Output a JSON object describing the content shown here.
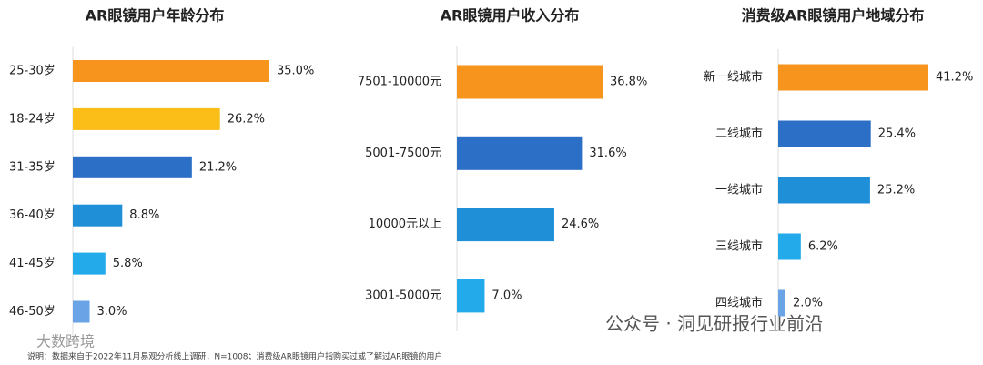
{
  "chart_data": [
    {
      "type": "bar",
      "orientation": "horizontal",
      "title": "AR眼镜用户年龄分布",
      "categories": [
        "25-30岁",
        "18-24岁",
        "31-35岁",
        "36-40岁",
        "41-45岁",
        "46-50岁"
      ],
      "values": [
        35.0,
        26.2,
        21.2,
        8.8,
        5.8,
        3.0
      ],
      "value_labels": [
        "35.0%",
        "26.2%",
        "21.2%",
        "8.8%",
        "5.8%",
        "3.0%"
      ],
      "colors": [
        "#f7941d",
        "#fbbd18",
        "#2b6fc6",
        "#1f8fd8",
        "#22aaea",
        "#6aa3e6"
      ]
    },
    {
      "type": "bar",
      "orientation": "horizontal",
      "title": "AR眼镜用户收入分布",
      "categories": [
        "7501-10000元",
        "5001-7500元",
        "10000元以上",
        "3001-5000元"
      ],
      "values": [
        36.8,
        31.6,
        24.6,
        7.0
      ],
      "value_labels": [
        "36.8%",
        "31.6%",
        "24.6%",
        "7.0%"
      ],
      "colors": [
        "#f7941d",
        "#2b6fc6",
        "#1f8fd8",
        "#22aaea"
      ]
    },
    {
      "type": "bar",
      "orientation": "horizontal",
      "title": "消费级AR眼镜用户地域分布",
      "categories": [
        "新一线城市",
        "二线城市",
        "一线城市",
        "三线城市",
        "四线城市"
      ],
      "values": [
        41.2,
        25.4,
        25.2,
        6.2,
        2.0
      ],
      "value_labels": [
        "41.2%",
        "25.4%",
        "25.2%",
        "6.2%",
        "2.0%"
      ],
      "colors": [
        "#f7941d",
        "#2b6fc6",
        "#1f8fd8",
        "#22aaea",
        "#6aa3e6"
      ]
    }
  ],
  "footnote": "说明：数据来自于2022年11月易观分析线上调研，N=1008；消费级AR眼镜用户指购买过或了解过AR眼镜的用户",
  "watermarks": [
    "公众号 · 洞见研报行业前沿",
    "大数跨境"
  ]
}
